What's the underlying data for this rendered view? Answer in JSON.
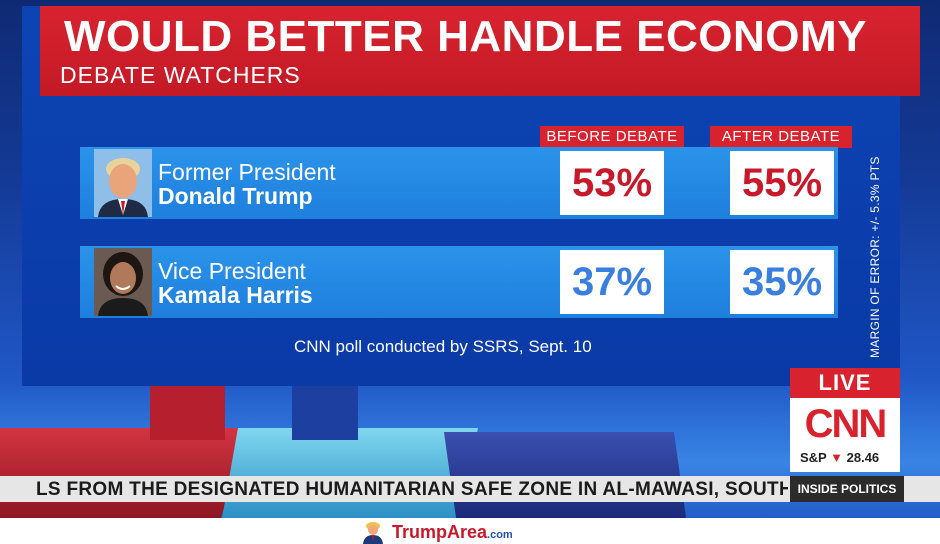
{
  "header": {
    "title": "WOULD BETTER HANDLE ECONOMY",
    "subtitle": "DEBATE WATCHERS"
  },
  "columns": {
    "before": "BEFORE DEBATE",
    "after": "AFTER DEBATE"
  },
  "rows": [
    {
      "role": "Former President",
      "name": "Donald Trump",
      "before": "53%",
      "after": "55%",
      "color": "#c8192b"
    },
    {
      "role": "Vice President",
      "name": "Kamala Harris",
      "before": "37%",
      "after": "35%",
      "color": "#3a7fe0"
    }
  ],
  "source": "CNN poll conducted by SSRS, Sept. 10",
  "margin_of_error": "MARGIN OF ERROR: +/- 5.3% PTS",
  "bug": {
    "live": "LIVE",
    "network": "CNN",
    "market_label": "S&P",
    "market_arrow": "▼",
    "market_value": "28.46"
  },
  "ticker": {
    "text": "LS FROM THE DESIGNATED HUMANITARIAN SAFE ZONE IN AL-MAWASI, SOUTHERN GAZ",
    "show": "INSIDE POLITICS"
  },
  "watermark": {
    "name": "TrumpArea",
    "suffix": ".com"
  },
  "colors": {
    "brand_red": "#d8232f",
    "panel_blue": "#0a3aa6",
    "row_blue": "#1e7fdc"
  }
}
